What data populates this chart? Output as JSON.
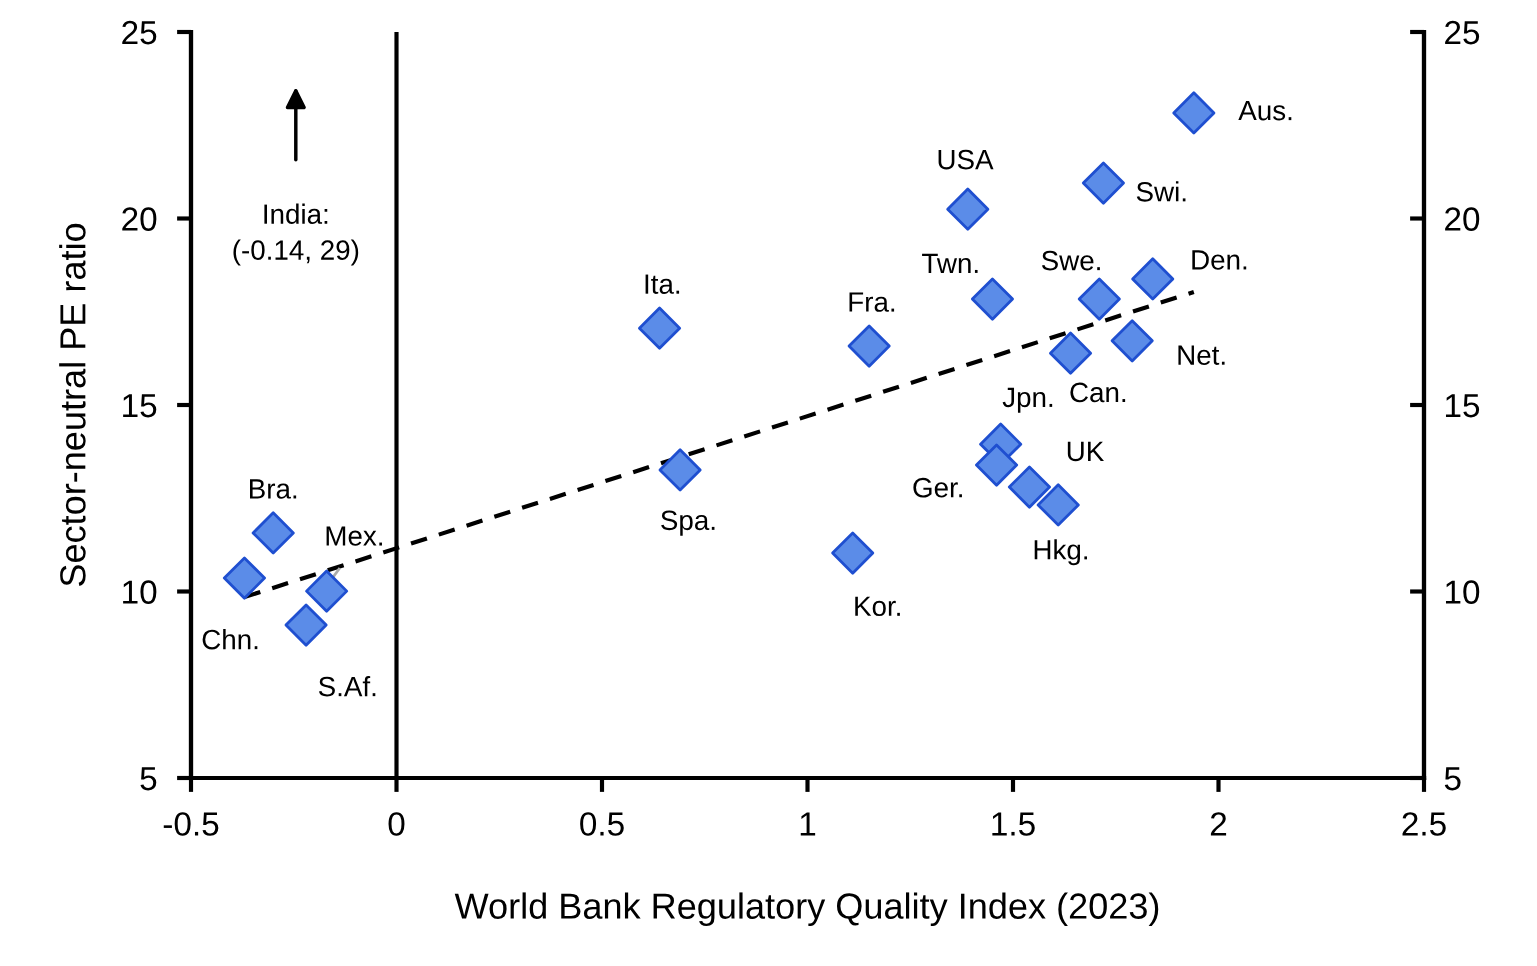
{
  "chart_data": {
    "type": "scatter",
    "xlabel": "World Bank Regulatory Quality Index (2023)",
    "ylabel": "Sector-neutral PE ratio",
    "xlim": [
      -0.5,
      2.5
    ],
    "xticks": [
      -0.5,
      0,
      0.5,
      1,
      1.5,
      2,
      2.5
    ],
    "ylim": [
      5,
      25
    ],
    "yticks": [
      5,
      10,
      15,
      20,
      25
    ],
    "y2lim": [
      5,
      25
    ],
    "y2ticks": [
      5,
      10,
      15,
      20,
      25
    ],
    "grid": false,
    "legend": false,
    "marker": "diamond",
    "series": [
      {
        "color": "#5b8ce8",
        "x": [
          1.94,
          1.72,
          1.39,
          1.84,
          1.71,
          1.45,
          1.79,
          1.64,
          1.15,
          0.64,
          1.47,
          1.46,
          1.54,
          1.61,
          0.69,
          1.11,
          -0.3,
          -0.37,
          -0.17,
          -0.22
        ],
        "values": [
          22.83,
          20.95,
          20.25,
          18.38,
          17.84,
          17.84,
          16.72,
          16.39,
          16.58,
          17.06,
          13.95,
          13.39,
          12.8,
          12.32,
          13.26,
          11.03,
          11.57,
          10.36,
          10.01,
          9.1
        ]
      },
      {
        "type": "line",
        "color": "#000000",
        "line_style": "dashed",
        "marker": "none",
        "x": [
          -0.37,
          1.94
        ],
        "values": [
          9.85,
          18.03
        ]
      }
    ],
    "ref_lines": [
      {
        "axis": "x",
        "value": 0,
        "color": "#000000"
      }
    ],
    "annotations": [
      {
        "text": "Aus.",
        "x": 1.94,
        "y": 22.83
      },
      {
        "text": "Swi.",
        "x": 1.72,
        "y": 20.95
      },
      {
        "text": "USA",
        "x": 1.39,
        "y": 20.25
      },
      {
        "text": "Den.",
        "x": 1.84,
        "y": 18.38
      },
      {
        "text": "Swe.",
        "x": 1.71,
        "y": 17.84
      },
      {
        "text": "Twn.",
        "x": 1.45,
        "y": 17.84
      },
      {
        "text": "Net.",
        "x": 1.79,
        "y": 16.72
      },
      {
        "text": "Can.",
        "x": 1.64,
        "y": 16.39
      },
      {
        "text": "Fra.",
        "x": 1.15,
        "y": 16.58
      },
      {
        "text": "Ita.",
        "x": 0.64,
        "y": 17.06
      },
      {
        "text": "Jpn.",
        "x": 1.47,
        "y": 13.95
      },
      {
        "text": "Ger.",
        "x": 1.46,
        "y": 13.39
      },
      {
        "text": "UK",
        "x": 1.54,
        "y": 12.8
      },
      {
        "text": "Hkg.",
        "x": 1.61,
        "y": 12.32
      },
      {
        "text": "Spa.",
        "x": 0.69,
        "y": 13.26
      },
      {
        "text": "Kor.",
        "x": 1.11,
        "y": 11.03
      },
      {
        "text": "Bra.",
        "x": -0.3,
        "y": 11.57
      },
      {
        "text": "Chn.",
        "x": -0.37,
        "y": 10.36
      },
      {
        "text": "Mex.",
        "x": -0.17,
        "y": 10.01
      },
      {
        "text": "S.Af.",
        "x": -0.22,
        "y": 9.1
      },
      "India:\n(-0.14, 29)"
    ]
  }
}
